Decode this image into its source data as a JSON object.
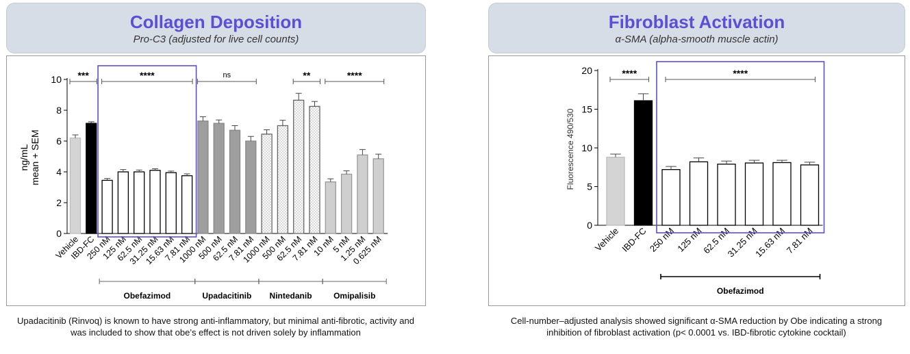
{
  "left": {
    "title": "Collagen Deposition",
    "subtitle": "Pro-C3 (adjusted for live cell counts)",
    "caption": "Upadacitinib (Rinvoq) is known to have strong anti-inflammatory, but minimal anti-fibrotic, activity and was included to show that obe’s effect is not driven solely by inflammation"
  },
  "right": {
    "title": "Fibroblast Activation",
    "subtitle": "α-SMA (alpha-smooth muscle actin)",
    "caption": "Cell-number–adjusted analysis showed significant α-SMA reduction by Obe indicating a strong inhibition of fibroblast activation (p< 0.0001 vs. IBD-fibrotic cytokine cocktail)"
  },
  "chart_data": [
    {
      "type": "bar",
      "ylabel_lines": [
        "ng/mL",
        "mean + SEM"
      ],
      "ylim": [
        0,
        10
      ],
      "yticks": [
        0,
        2,
        4,
        6,
        8,
        10
      ],
      "categories": [
        "Vehicle",
        "IBD-FC",
        "250 nM",
        "125 nM",
        "62.5 nM",
        "31.25 nM",
        "15.63 nM",
        "7.81 nM",
        "1000 nM",
        "500 nM",
        "62.5 nM",
        "7.81 nM",
        "1000 nM",
        "500 nM",
        "62.5 nM",
        "7.81 nM",
        "10 nM",
        "5 nM",
        "1.25 nM",
        "0.625 nM"
      ],
      "values": [
        6.2,
        7.15,
        3.45,
        4.0,
        4.0,
        4.1,
        3.95,
        3.75,
        7.3,
        7.15,
        6.7,
        6.0,
        6.45,
        7.0,
        8.65,
        8.25,
        3.35,
        3.85,
        5.1,
        4.85
      ],
      "errors": [
        0.2,
        0.1,
        0.12,
        0.15,
        0.12,
        0.1,
        0.1,
        0.12,
        0.28,
        0.22,
        0.3,
        0.3,
        0.28,
        0.35,
        0.45,
        0.32,
        0.2,
        0.22,
        0.35,
        0.3
      ],
      "styles": [
        "lightgray",
        "black",
        "white",
        "white",
        "white",
        "white",
        "white",
        "white",
        "gray",
        "gray",
        "gray",
        "gray",
        "dotted",
        "dotted",
        "dotted",
        "dotted",
        "gray2",
        "gray2",
        "gray2",
        "gray2"
      ],
      "groups": [
        {
          "name": "Obefazimod",
          "from": 2,
          "to": 7
        },
        {
          "name": "Upadacitinib",
          "from": 8,
          "to": 11
        },
        {
          "name": "Nintedanib",
          "from": 12,
          "to": 15
        },
        {
          "name": "Omipalisib",
          "from": 16,
          "to": 19
        }
      ],
      "significance": [
        {
          "label": "***",
          "from": 0,
          "to": 1
        },
        {
          "label": "****",
          "from": 2,
          "to": 7
        },
        {
          "label": "ns",
          "from": 8,
          "to": 11
        },
        {
          "label": "**",
          "from": 14,
          "to": 15
        },
        {
          "label": "****",
          "from": 16,
          "to": 19
        }
      ],
      "highlight_box": {
        "from": 2,
        "to": 7
      }
    },
    {
      "type": "bar",
      "ylabel": "Fluorescence 490/530",
      "ylim": [
        0,
        20
      ],
      "yticks": [
        0,
        5,
        10,
        15,
        20
      ],
      "categories": [
        "Vehicle",
        "IBD-FC",
        "250 nM",
        "125 nM",
        "62.5 nM",
        "31.25 nM",
        "15.63 nM",
        "7.81 nM"
      ],
      "values": [
        8.8,
        16.1,
        7.2,
        8.2,
        7.9,
        8.05,
        8.1,
        7.8
      ],
      "errors": [
        0.4,
        0.9,
        0.4,
        0.5,
        0.4,
        0.35,
        0.3,
        0.35
      ],
      "styles": [
        "lightgray",
        "black",
        "white",
        "white",
        "white",
        "white",
        "white",
        "white"
      ],
      "groups": [
        {
          "name": "Obefazimod",
          "from": 2,
          "to": 7
        }
      ],
      "significance": [
        {
          "label": "****",
          "from": 0,
          "to": 1
        },
        {
          "label": "****",
          "from": 2,
          "to": 7
        }
      ],
      "highlight_box": {
        "from": 2,
        "to": 7
      }
    }
  ]
}
